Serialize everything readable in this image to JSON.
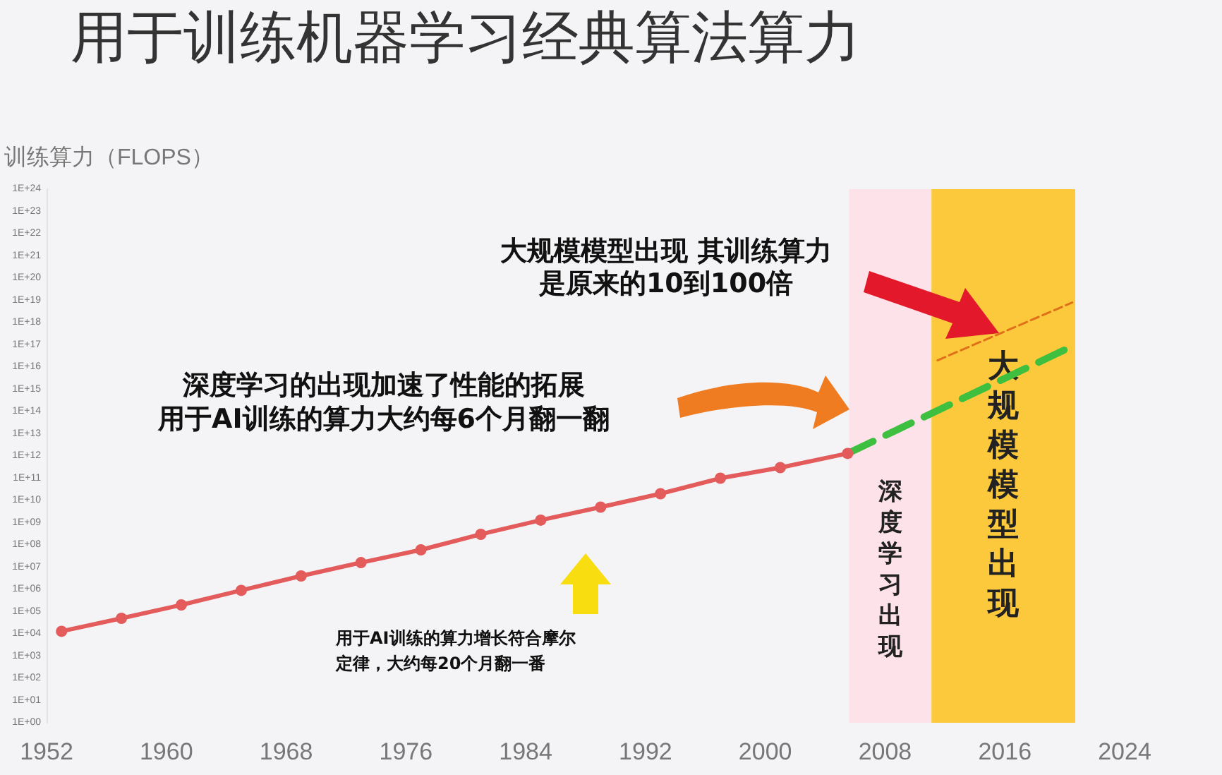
{
  "chart_data": {
    "type": "line",
    "title": "用于训练机器学习经典算法算力",
    "ylabel": "训练算力（FLOPS）",
    "log": "y",
    "grid": false,
    "series": [
      {
        "color": "#e35b5b",
        "marker": "circle",
        "line_style": "solid",
        "x": [
          1953,
          1957,
          1961,
          1965,
          1969,
          1973,
          1977,
          1981,
          1985,
          1989,
          1993,
          1997,
          2001,
          2005.5
        ],
        "values": [
          13000,
          50000,
          200000,
          900000,
          4000000,
          16000000,
          60000000,
          300000000,
          1300000000,
          5000000000,
          20000000000,
          100000000000,
          300000000000,
          1300000000000
        ]
      },
      {
        "color": "#3fbf3f",
        "marker": "none",
        "line_style": "dashed",
        "x": [
          2005.5,
          2020
        ],
        "values": [
          1300000000000,
          60000000000000000
        ]
      },
      {
        "color": "#e0701a",
        "marker": "none",
        "line_style": "dashed",
        "x": [
          2011.5,
          2020.5
        ],
        "values": [
          20000000000000000,
          8000000000000000000
        ]
      }
    ],
    "xlim": [
      1952,
      2024
    ],
    "xticks": [
      1952,
      1960,
      1968,
      1976,
      1984,
      1992,
      2000,
      2008,
      2016,
      2024
    ],
    "ylim": [
      1,
      1e+24
    ],
    "yticks": [
      {
        "value": 1,
        "label": "1E+00"
      },
      {
        "value": 10,
        "label": "1E+01"
      },
      {
        "value": 100,
        "label": "1E+02"
      },
      {
        "value": 1000,
        "label": "1E+03"
      },
      {
        "value": 10000,
        "label": "1E+04"
      },
      {
        "value": 100000,
        "label": "1E+05"
      },
      {
        "value": 1000000,
        "label": "1E+06"
      },
      {
        "value": 10000000,
        "label": "1E+07"
      },
      {
        "value": 100000000,
        "label": "1E+08"
      },
      {
        "value": 1000000000,
        "label": "1E+09"
      },
      {
        "value": 10000000000,
        "label": "1E+10"
      },
      {
        "value": 100000000000,
        "label": "1E+11"
      },
      {
        "value": 1000000000000,
        "label": "1E+12"
      },
      {
        "value": 10000000000000.0,
        "label": "1E+13"
      },
      {
        "value": 100000000000000.0,
        "label": "1E+14"
      },
      {
        "value": 1000000000000000.0,
        "label": "1E+15"
      },
      {
        "value": 1e+16,
        "label": "1E+16"
      },
      {
        "value": 1e+17,
        "label": "1E+17"
      },
      {
        "value": 1e+18,
        "label": "1E+18"
      },
      {
        "value": 1e+19,
        "label": "1E+19"
      },
      {
        "value": 1e+20,
        "label": "1E+20"
      },
      {
        "value": 1e+21,
        "label": "1E+21"
      },
      {
        "value": 1e+22,
        "label": "1E+22"
      },
      {
        "value": 1e+23,
        "label": "1E+23"
      },
      {
        "value": 1e+24,
        "label": "1E+24"
      }
    ],
    "bands": [
      {
        "axis": "x",
        "from": 2005.6,
        "to": 2011.1,
        "label": "深度学习出现",
        "color": "#fde2ea"
      },
      {
        "axis": "x",
        "from": 2011.1,
        "to": 2020.7,
        "label": "大规模模型出现",
        "color": "#fcc93c"
      }
    ],
    "annotations": [
      "大规模模型出现 其训练算力",
      "是原来的10到100倍",
      "深度学习的出现加速了性能的拓展",
      "用于AI训练的算力大约每6个月翻一翻",
      "用于AI训练的算力增长符合摩尔",
      "定律，大约每20个月翻一番"
    ]
  }
}
